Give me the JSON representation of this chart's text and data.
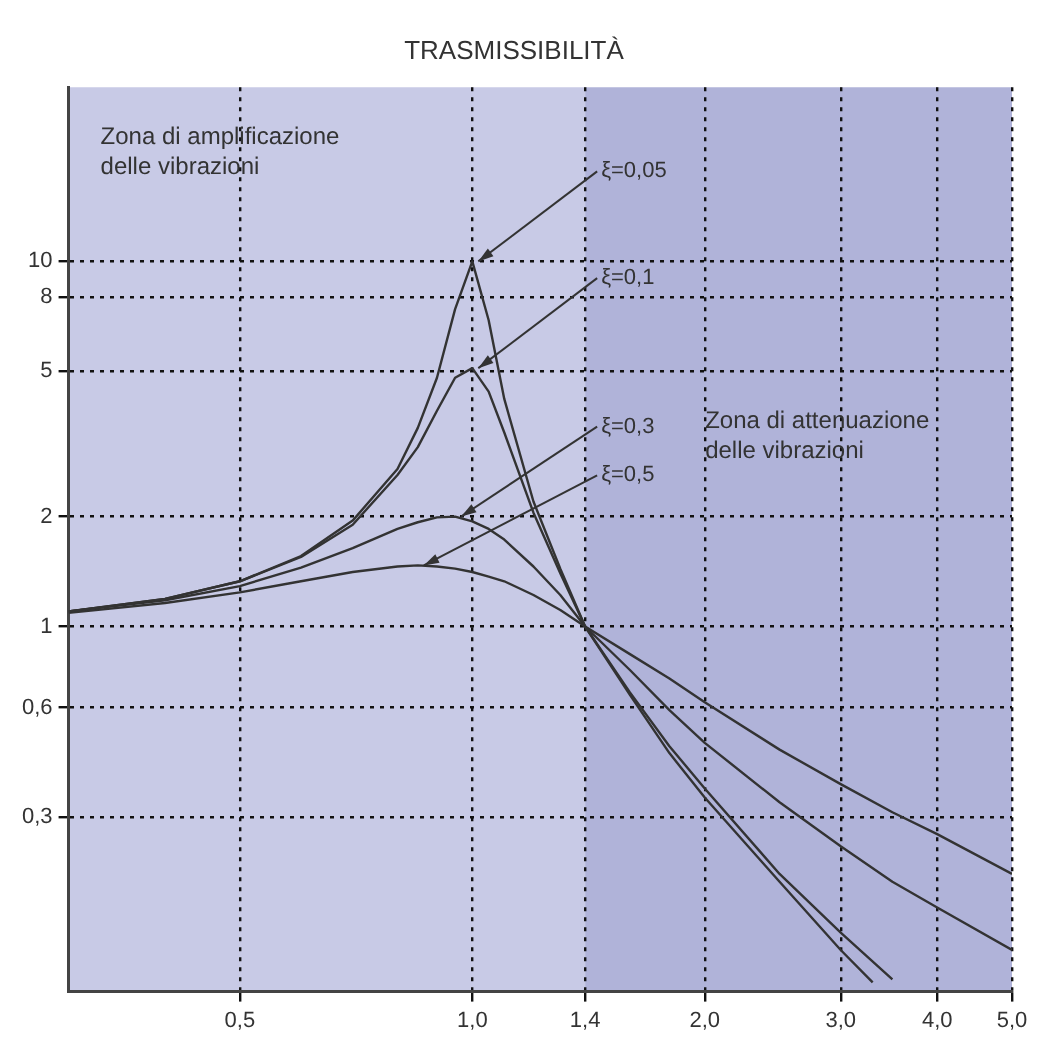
{
  "chart_data": {
    "type": "line",
    "title": "TRASMISSIBILITÀ",
    "x": [
      0.3,
      0.4,
      0.5,
      0.6,
      0.7,
      0.8,
      0.85,
      0.9,
      0.95,
      1.0,
      1.05,
      1.1,
      1.2,
      1.3,
      1.4,
      1.6,
      1.8,
      2.0,
      2.5,
      3.0,
      3.5,
      4.0,
      5.0
    ],
    "series": [
      {
        "name": "ξ=0,05",
        "color": "#333333",
        "x": [
          0.3,
          0.4,
          0.5,
          0.6,
          0.7,
          0.8,
          0.85,
          0.9,
          0.95,
          1.0,
          1.05,
          1.1,
          1.2,
          1.3,
          1.4,
          1.6,
          1.8,
          2.0,
          2.5,
          3.0,
          3.3
        ],
        "values": [
          1.1,
          1.19,
          1.33,
          1.56,
          1.95,
          2.7,
          3.5,
          4.8,
          7.4,
          10,
          6.9,
          4.2,
          2.2,
          1.44,
          1,
          0.65,
          0.45,
          0.34,
          0.2,
          0.13,
          0.106
        ]
      },
      {
        "name": "ξ=0,1",
        "color": "#333333",
        "x": [
          0.3,
          0.4,
          0.5,
          0.6,
          0.7,
          0.8,
          0.85,
          0.9,
          0.95,
          1.0,
          1.05,
          1.1,
          1.2,
          1.3,
          1.4,
          1.6,
          1.8,
          2.0,
          2.5,
          3.0,
          3.5
        ],
        "values": [
          1.1,
          1.19,
          1.33,
          1.55,
          1.9,
          2.6,
          3.1,
          3.9,
          4.8,
          5.1,
          4.4,
          3.4,
          2.05,
          1.4,
          1,
          0.66,
          0.47,
          0.36,
          0.21,
          0.145,
          0.108
        ]
      },
      {
        "name": "ξ=0,3",
        "color": "#333333",
        "values": [
          1.1,
          1.18,
          1.29,
          1.45,
          1.64,
          1.85,
          1.93,
          1.99,
          2.0,
          1.94,
          1.85,
          1.73,
          1.46,
          1.22,
          1,
          0.76,
          0.59,
          0.48,
          0.33,
          0.25,
          0.2,
          0.17,
          0.13
        ]
      },
      {
        "name": "ξ=0,5",
        "color": "#333333",
        "values": [
          1.09,
          1.16,
          1.24,
          1.33,
          1.41,
          1.46,
          1.47,
          1.46,
          1.44,
          1.41,
          1.37,
          1.33,
          1.22,
          1.11,
          1,
          0.84,
          0.72,
          0.62,
          0.46,
          0.37,
          0.31,
          0.27,
          0.21
        ]
      }
    ],
    "log": "xy",
    "xlim": [
      0.3,
      5
    ],
    "ylim": [
      0.1,
      30
    ],
    "xticks": [
      {
        "value": 0.5,
        "label": "0,5"
      },
      {
        "value": 1,
        "label": "1,0"
      },
      {
        "value": 1.4,
        "label": "1,4"
      },
      {
        "value": 2,
        "label": "2,0"
      },
      {
        "value": 3,
        "label": "3,0"
      },
      {
        "value": 4,
        "label": "4,0"
      },
      {
        "value": 5,
        "label": "5,0"
      }
    ],
    "yticks": [
      {
        "value": 0.3,
        "label": "0,3"
      },
      {
        "value": 0.6,
        "label": "0,6"
      },
      1,
      2,
      5,
      8,
      10
    ],
    "bands": [
      {
        "axis": "x",
        "from": 0.3,
        "to": 1.4,
        "label": "Zona di amplificazione\ndelle vibrazioni",
        "color": "#c8cae6"
      },
      {
        "axis": "x",
        "from": 1.4,
        "to": 5,
        "label": "Zona di attenuazione\ndelle vibrazioni",
        "color": "#b0b3d9"
      }
    ],
    "grid": true,
    "legend": false,
    "marker": "none",
    "line_style": "solid"
  }
}
